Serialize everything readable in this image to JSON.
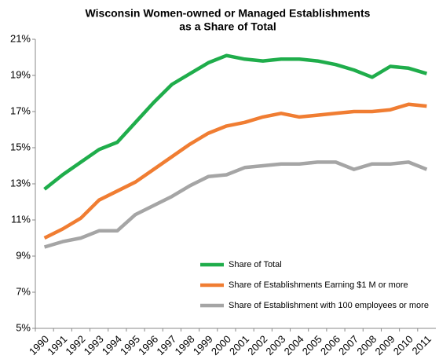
{
  "chart_data": {
    "type": "line",
    "title": [
      "Wisconsin Women-owned or Managed Establishments",
      "as a Share of Total"
    ],
    "categories": [
      "1990",
      "1991",
      "1992",
      "1993",
      "1994",
      "1995",
      "1996",
      "1997",
      "1998",
      "1999",
      "2000",
      "2001",
      "2002",
      "2003",
      "2004",
      "2005",
      "2006",
      "2007",
      "2008",
      "2009",
      "2010",
      "2011"
    ],
    "series": [
      {
        "name": "Share of Total",
        "color": "#1fad4b",
        "values": [
          12.7,
          13.5,
          14.2,
          14.9,
          15.3,
          16.4,
          17.5,
          18.5,
          19.1,
          19.7,
          20.1,
          19.9,
          19.8,
          19.9,
          19.9,
          19.8,
          19.6,
          19.3,
          18.9,
          19.5,
          19.4,
          19.1
        ]
      },
      {
        "name": "Share of Establishments Earning $1 M or more",
        "color": "#f07d32",
        "values": [
          10.0,
          10.5,
          11.1,
          12.1,
          12.6,
          13.1,
          13.8,
          14.5,
          15.2,
          15.8,
          16.2,
          16.4,
          16.7,
          16.9,
          16.7,
          16.8,
          16.9,
          17.0,
          17.0,
          17.1,
          17.4,
          17.3
        ]
      },
      {
        "name": "Share of Establishment with 100 employees or more",
        "color": "#a5a5a5",
        "values": [
          9.5,
          9.8,
          10.0,
          10.4,
          10.4,
          11.3,
          11.8,
          12.3,
          12.9,
          13.4,
          13.5,
          13.9,
          14.0,
          14.1,
          14.1,
          14.2,
          14.2,
          13.8,
          14.1,
          14.1,
          14.2,
          13.8
        ]
      }
    ],
    "ylim": [
      5,
      21
    ],
    "yticks": [
      {
        "value": 5,
        "label": "5%"
      },
      {
        "value": 7,
        "label": "7%"
      },
      {
        "value": 9,
        "label": "9%"
      },
      {
        "value": 11,
        "label": "11%"
      },
      {
        "value": 13,
        "label": "13%"
      },
      {
        "value": 15,
        "label": "15%"
      },
      {
        "value": 17,
        "label": "17%"
      },
      {
        "value": 19,
        "label": "19%"
      },
      {
        "value": 21,
        "label": "21%"
      }
    ],
    "grid": false,
    "legend": "lower right"
  }
}
